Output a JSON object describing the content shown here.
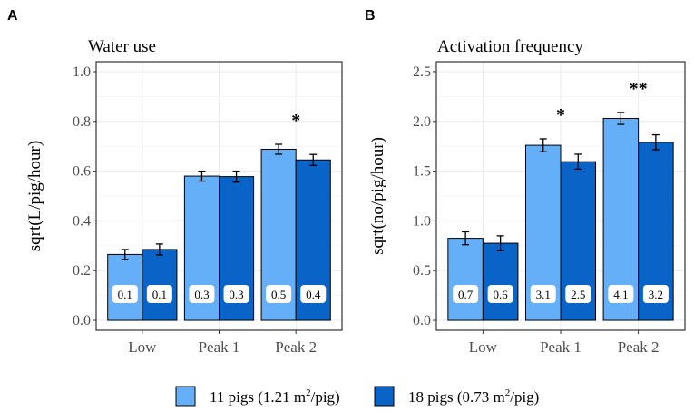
{
  "colors": {
    "series_light": "#64AFF7",
    "series_dark": "#0A63C7",
    "grid": "#EBEBEB",
    "panel_border": "#333333"
  },
  "chart_data": [
    {
      "type": "bar",
      "panel": "A",
      "title": "Water use",
      "ylabel": "sqrt(L/pig/hour)",
      "xlabel": "",
      "categories": [
        "Low",
        "Peak 1",
        "Peak 2"
      ],
      "ylim": [
        -0.04,
        1.04
      ],
      "yticks": [
        0.0,
        0.2,
        0.4,
        0.6,
        0.8,
        1.0
      ],
      "ytick_labels": [
        "0.0",
        "0.2",
        "0.4",
        "0.6",
        "0.8",
        "1.0"
      ],
      "series": [
        {
          "name": "11 pigs",
          "values": [
            0.265,
            0.58,
            0.688
          ],
          "errors": [
            0.02,
            0.02,
            0.02
          ],
          "labels": [
            "0.1",
            "0.3",
            "0.5"
          ]
        },
        {
          "name": "18 pigs",
          "values": [
            0.285,
            0.578,
            0.645
          ],
          "errors": [
            0.022,
            0.022,
            0.022
          ],
          "labels": [
            "0.1",
            "0.3",
            "0.4"
          ]
        }
      ],
      "significance": [
        {
          "category": "Peak 2",
          "text": "*"
        }
      ]
    },
    {
      "type": "bar",
      "panel": "B",
      "title": "Activation frequency",
      "ylabel": "sqrt(no/pig/hour)",
      "xlabel": "",
      "categories": [
        "Low",
        "Peak 1",
        "Peak 2"
      ],
      "ylim": [
        -0.1,
        2.6
      ],
      "yticks": [
        0.0,
        0.5,
        1.0,
        1.5,
        2.0,
        2.5
      ],
      "ytick_labels": [
        "0.0",
        "0.5",
        "1.0",
        "1.5",
        "2.0",
        "2.5"
      ],
      "series": [
        {
          "name": "11 pigs",
          "values": [
            0.825,
            1.76,
            2.03
          ],
          "errors": [
            0.065,
            0.065,
            0.06
          ],
          "labels": [
            "0.7",
            "3.1",
            "4.1"
          ]
        },
        {
          "name": "18 pigs",
          "values": [
            0.775,
            1.595,
            1.79
          ],
          "errors": [
            0.075,
            0.075,
            0.075
          ],
          "labels": [
            "0.6",
            "2.5",
            "3.2"
          ]
        }
      ],
      "significance": [
        {
          "category": "Peak 1",
          "text": "*"
        },
        {
          "category": "Peak 2",
          "text": "**"
        }
      ]
    }
  ],
  "legend": {
    "items": [
      {
        "text": "11 pigs (1.21 m",
        "sup": "2",
        "tail": "/pig)"
      },
      {
        "text": "18 pigs (0.73 m",
        "sup": "2",
        "tail": "/pig)"
      }
    ]
  }
}
